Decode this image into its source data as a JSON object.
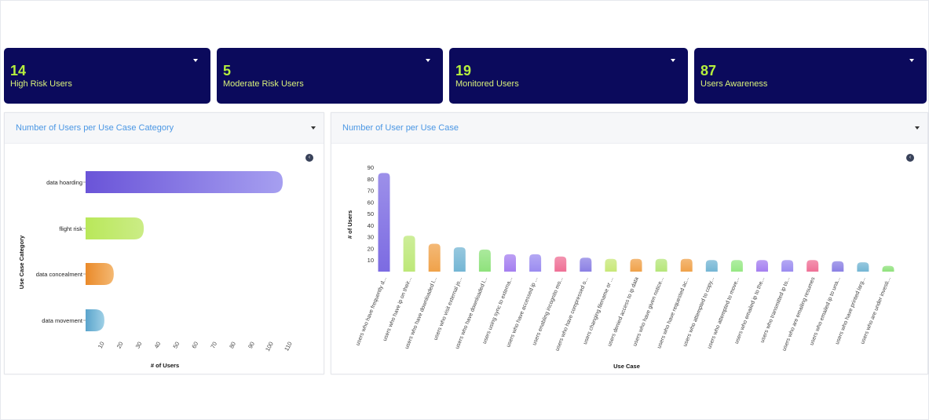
{
  "cards": [
    {
      "value": "14",
      "label": "High Risk Users"
    },
    {
      "value": "5",
      "label": "Moderate Risk Users"
    },
    {
      "value": "19",
      "label": "Monitored Users"
    },
    {
      "value": "87",
      "label": "Users Awareness"
    }
  ],
  "panels": {
    "left_title": "Number of Users per Use Case Category",
    "right_title": "Number of User per Use Case",
    "back_icon": "chevron-left-circle-icon",
    "menu_icon": "caret-down-icon"
  },
  "chart_data": [
    {
      "type": "bar",
      "orientation": "horizontal",
      "categories": [
        "data hoarding",
        "flight risk",
        "data concealment",
        "data movement"
      ],
      "values": [
        105,
        31,
        15,
        10
      ],
      "colors": [
        [
          "#6a54d8",
          "#a69ff0"
        ],
        [
          "#b9e85a",
          "#cbec86"
        ],
        [
          "#ea8a2a",
          "#f4b872"
        ],
        [
          "#5aa4cc",
          "#9fd0e6"
        ]
      ],
      "xlabel": "# of Users",
      "ylabel": "Use Case Category",
      "xticks": [
        10,
        20,
        30,
        40,
        50,
        60,
        70,
        80,
        90,
        100,
        110
      ],
      "xlim": [
        0,
        110
      ]
    },
    {
      "type": "bar",
      "categories": [
        "users who have frequently d...",
        "users who have ip on their...",
        "users who have downloaded l...",
        "users who visit external jo...",
        "users who have downloaded l...",
        "users using sync to externa...",
        "users who have accessed ip ...",
        "users enabling incognito mo...",
        "users who have compressed o...",
        "users changing filename or ...",
        "users denied access to ip data",
        "users who have given notice...",
        "users who have requested ac...",
        "users who attempted to copy...",
        "users who attempted to move...",
        "users who emailed ip to the...",
        "users who transmitted ip to...",
        "users who are emailing resumes",
        "users who emailed ip to una...",
        "users who have printed larg...",
        "users who are under investi..."
      ],
      "values": [
        85,
        31,
        24,
        21,
        19,
        15,
        15,
        13,
        12,
        11,
        11,
        11,
        11,
        10,
        10,
        10,
        10,
        10,
        9,
        8,
        5
      ],
      "colors": [
        "#7c6be2",
        "#bde878",
        "#f0a24a",
        "#74b6d4",
        "#8fe27c",
        "#a57ff0",
        "#9b8cf0",
        "#ef7096",
        "#8b80e4",
        "#c8e878",
        "#f0a24a",
        "#b6e67a",
        "#f0a24a",
        "#74b6d4",
        "#96e884",
        "#a57ff0",
        "#9b8cf0",
        "#ef7096",
        "#8b80e4",
        "#74b6d4",
        "#8fe27c"
      ],
      "xlabel": "Use Case",
      "ylabel": "# of Users",
      "yticks": [
        10,
        20,
        30,
        40,
        50,
        60,
        70,
        80,
        90
      ],
      "ylim": [
        0,
        90
      ]
    }
  ]
}
